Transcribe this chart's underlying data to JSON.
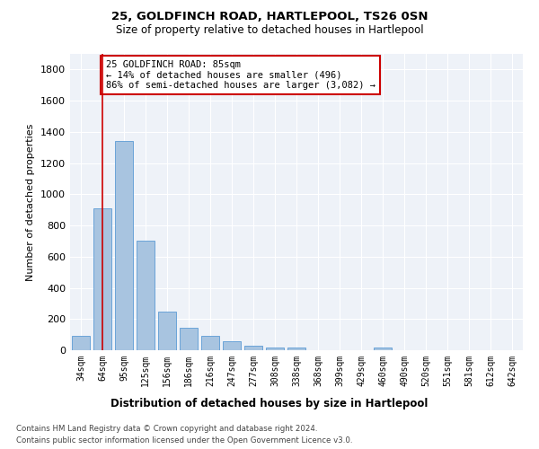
{
  "title1": "25, GOLDFINCH ROAD, HARTLEPOOL, TS26 0SN",
  "title2": "Size of property relative to detached houses in Hartlepool",
  "xlabel": "Distribution of detached houses by size in Hartlepool",
  "ylabel": "Number of detached properties",
  "categories": [
    "34sqm",
    "64sqm",
    "95sqm",
    "125sqm",
    "156sqm",
    "186sqm",
    "216sqm",
    "247sqm",
    "277sqm",
    "308sqm",
    "338sqm",
    "368sqm",
    "399sqm",
    "429sqm",
    "460sqm",
    "490sqm",
    "520sqm",
    "551sqm",
    "581sqm",
    "612sqm",
    "642sqm"
  ],
  "values": [
    90,
    910,
    1340,
    700,
    250,
    145,
    90,
    55,
    30,
    20,
    15,
    0,
    0,
    0,
    20,
    0,
    0,
    0,
    0,
    0,
    0
  ],
  "bar_color": "#a8c4e0",
  "bar_edgecolor": "#5b9bd5",
  "vline_x": 1.0,
  "vline_color": "#cc0000",
  "annotation_box_text": "25 GOLDFINCH ROAD: 85sqm\n← 14% of detached houses are smaller (496)\n86% of semi-detached houses are larger (3,082) →",
  "annotation_box_color": "#cc0000",
  "annotation_box_facecolor": "white",
  "ylim": [
    0,
    1900
  ],
  "yticks": [
    0,
    200,
    400,
    600,
    800,
    1000,
    1200,
    1400,
    1600,
    1800
  ],
  "footer1": "Contains HM Land Registry data © Crown copyright and database right 2024.",
  "footer2": "Contains public sector information licensed under the Open Government Licence v3.0.",
  "background_color": "#eef2f8",
  "grid_color": "white"
}
